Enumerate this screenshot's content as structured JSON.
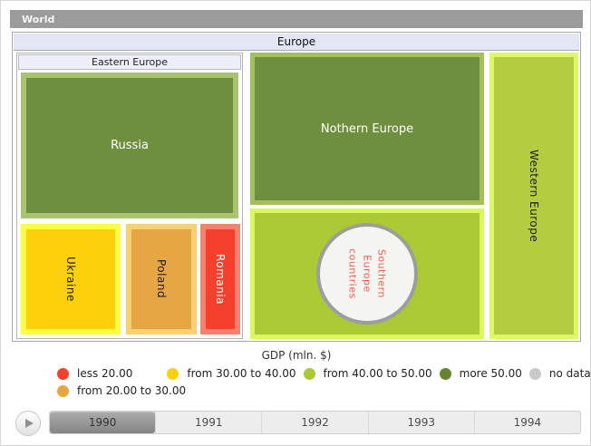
{
  "world_bar": {
    "label": "World"
  },
  "treemap": {
    "europe_header": "Europe",
    "eastern_header": "Eastern Europe",
    "nodes": {
      "russia": "Russia",
      "ukraine": "Ukraine",
      "poland": "Poland",
      "romania": "Romania",
      "nothern": "Nothern Europe",
      "western": "Western Europe",
      "southern_lines": [
        "Southern",
        "Europe",
        "countries"
      ]
    }
  },
  "legend": {
    "title": "GDP (mln. $)",
    "items": [
      {
        "label": "less 20.00",
        "color": "#f4402d"
      },
      {
        "label": "from 30.00 to 40.00",
        "color": "#fdd00c"
      },
      {
        "label": "from 40.00 to 50.00",
        "color": "#abc935"
      },
      {
        "label": "more 50.00",
        "color": "#64842f"
      },
      {
        "label": "no data",
        "color": "#c9c9c9"
      },
      {
        "label": "from 20.00 to 30.00",
        "color": "#e6a643"
      }
    ]
  },
  "timeline": {
    "years": [
      "1990",
      "1991",
      "1992",
      "1993",
      "1994"
    ],
    "selected": "1990"
  },
  "chart_data": {
    "type": "treemap",
    "title": "Europe",
    "breadcrumb_root": "World",
    "legend_title": "GDP (mln. $)",
    "color_scale": [
      {
        "label": "less 20.00",
        "color": "#f4402d"
      },
      {
        "label": "from 20.00 to 30.00",
        "color": "#e6a643"
      },
      {
        "label": "from 30.00 to 40.00",
        "color": "#fdd00c"
      },
      {
        "label": "from 40.00 to 50.00",
        "color": "#abc935"
      },
      {
        "label": "more 50.00",
        "color": "#64842f"
      },
      {
        "label": "no data",
        "color": "#c9c9c9"
      }
    ],
    "nodes": [
      {
        "name": "Eastern Europe",
        "children": [
          {
            "name": "Russia",
            "bucket": "more 50.00",
            "relative_size": "large"
          },
          {
            "name": "Ukraine",
            "bucket": "from 30.00 to 40.00",
            "relative_size": "medium"
          },
          {
            "name": "Poland",
            "bucket": "from 20.00 to 30.00",
            "relative_size": "small"
          },
          {
            "name": "Romania",
            "bucket": "less 20.00",
            "relative_size": "smallest"
          }
        ]
      },
      {
        "name": "Nothern Europe",
        "bucket": "more 50.00"
      },
      {
        "name": "Southern Europe countries",
        "bucket": "from 40.00 to 50.00",
        "marker": "no data circle"
      },
      {
        "name": "Western Europe",
        "bucket": "from 40.00 to 50.00"
      }
    ],
    "timeline_years": [
      "1990",
      "1991",
      "1992",
      "1993",
      "1994"
    ],
    "selected_year": "1990"
  }
}
